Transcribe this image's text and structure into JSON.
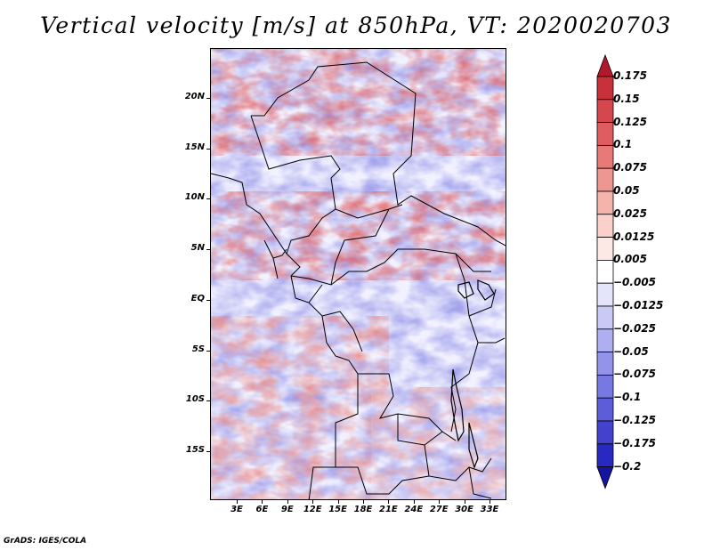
{
  "title": "Vertical velocity [m/s] at 850hPa, VT: 2020020703",
  "footer": "GrADS: IGES/COLA",
  "map": {
    "lat_labels": [
      "20N",
      "15N",
      "10N",
      "5N",
      "EQ",
      "5S",
      "10S",
      "15S"
    ],
    "lon_labels": [
      "3E",
      "6E",
      "9E",
      "12E",
      "15E",
      "18E",
      "21E",
      "24E",
      "27E",
      "30E",
      "33E"
    ]
  },
  "colorbar": {
    "labels": [
      "0.175",
      "0.15",
      "0.125",
      "0.1",
      "0.075",
      "0.05",
      "0.025",
      "0.0125",
      "0.005",
      "−0.005",
      "−0.0125",
      "−0.025",
      "−0.05",
      "−0.075",
      "−0.1",
      "−0.125",
      "−0.175",
      "−0.2"
    ],
    "colors": [
      "#b2182b",
      "#c8303a",
      "#d6474d",
      "#e05d5f",
      "#e77a76",
      "#ee9690",
      "#f4b3ab",
      "#f9d0ca",
      "#fce8e4",
      "#ffffff",
      "#e4e4fb",
      "#c9c9f5",
      "#aeaef0",
      "#9393ea",
      "#7878e2",
      "#5d5dd9",
      "#4242cf",
      "#2828c2",
      "#14149e"
    ]
  }
}
